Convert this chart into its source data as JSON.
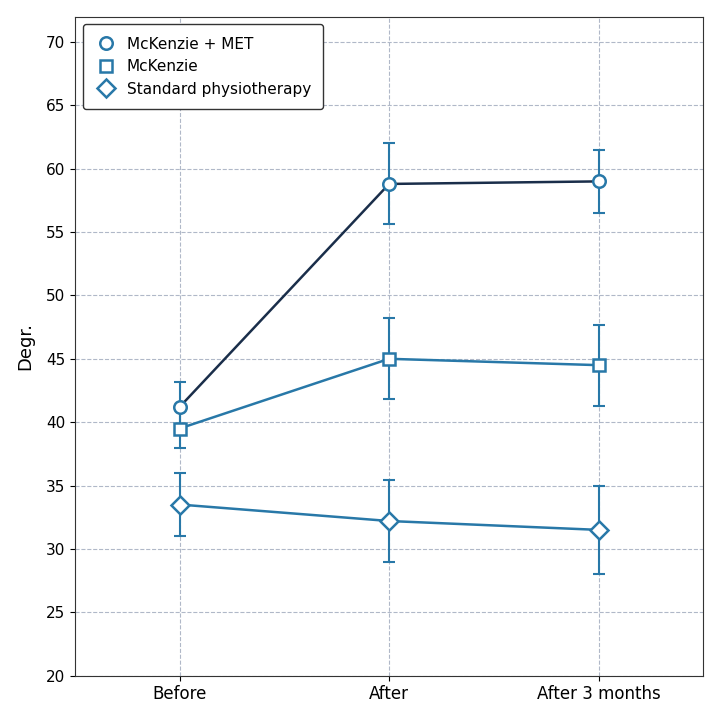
{
  "series": [
    {
      "label": "McKenzie + MET",
      "marker": "o",
      "values": [
        41.2,
        58.8,
        59.0
      ],
      "errors": [
        2.0,
        3.2,
        2.5
      ],
      "line_color": "#1a2e4a",
      "marker_color": "#2878a8"
    },
    {
      "label": "McKenzie",
      "marker": "s",
      "values": [
        39.5,
        45.0,
        44.5
      ],
      "errors": [
        1.5,
        3.2,
        3.2
      ],
      "line_color": "#2878a8",
      "marker_color": "#2878a8"
    },
    {
      "label": "Standard physiotherapy",
      "marker": "D",
      "values": [
        33.5,
        32.2,
        31.5
      ],
      "errors": [
        2.5,
        3.2,
        3.5
      ],
      "line_color": "#2878a8",
      "marker_color": "#2878a8"
    }
  ],
  "x_labels": [
    "Before",
    "After",
    "After 3 months"
  ],
  "x_positions": [
    0,
    1,
    2
  ],
  "ylabel": "Degr.",
  "ylim": [
    20,
    72
  ],
  "yticks": [
    20,
    25,
    30,
    35,
    40,
    45,
    50,
    55,
    60,
    65,
    70
  ],
  "grid_color": "#b0b8c8",
  "background_color": "#ffffff",
  "marker_size": 9,
  "line_width": 1.8,
  "capsize": 4,
  "elinewidth": 1.5
}
